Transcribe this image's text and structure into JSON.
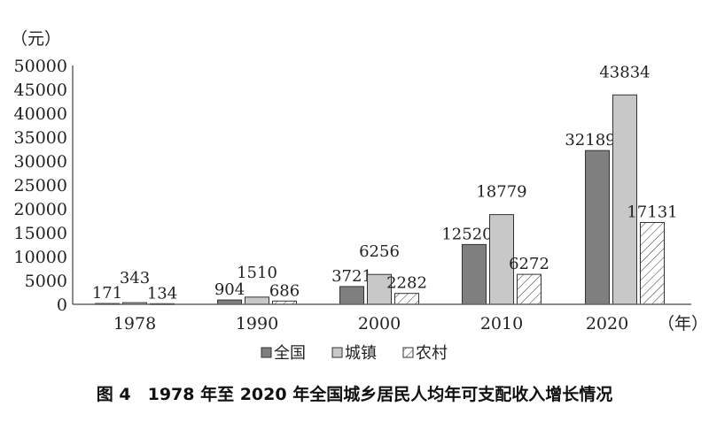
{
  "chart_data": {
    "type": "bar",
    "title": "图 4　1978 年至 2020 年全国城乡居民人均年可支配收入增长情况",
    "ylabel": "（元）",
    "xlabel": "（年）",
    "categories": [
      "1978",
      "1990",
      "2000",
      "2010",
      "2020"
    ],
    "ylim": [
      0,
      50000
    ],
    "yticks": [
      0,
      5000,
      10000,
      15000,
      20000,
      25000,
      30000,
      35000,
      40000,
      45000,
      50000
    ],
    "grid": false,
    "legend_placement": "bottom",
    "series": [
      {
        "name": "全国",
        "values": [
          171,
          904,
          3721,
          12520,
          32189
        ],
        "color": "#7f7f7f",
        "pattern": "solid"
      },
      {
        "name": "城镇",
        "values": [
          343,
          1510,
          6256,
          18779,
          43834
        ],
        "color": "#c8c8c8",
        "pattern": "solid"
      },
      {
        "name": "农村",
        "values": [
          134,
          686,
          2282,
          6272,
          17131
        ],
        "color": "#ffffff",
        "pattern": "hatch"
      }
    ]
  }
}
